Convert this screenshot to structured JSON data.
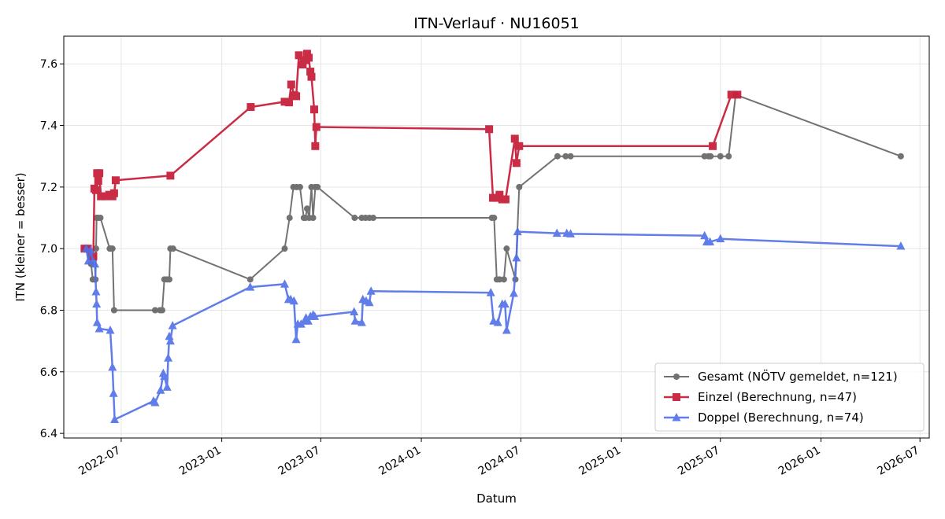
{
  "chart_data": {
    "type": "line",
    "title": "ITN-Verlauf · NU16051",
    "xlabel": "Datum",
    "ylabel": "ITN  (kleiner = besser)",
    "x_type": "date",
    "xlim": [
      "2022-03-18",
      "2026-07-18"
    ],
    "ylim": [
      6.385,
      7.69
    ],
    "grid": true,
    "legend_position": "lower right",
    "x_ticks": [
      "2022-07",
      "2023-01",
      "2023-07",
      "2024-01",
      "2024-07",
      "2025-01",
      "2025-07",
      "2026-01",
      "2026-07"
    ],
    "y_ticks": [
      6.4,
      6.6,
      6.8,
      7.0,
      7.2,
      7.4,
      7.6
    ],
    "y_tick_labels": [
      "6.4",
      "6.6",
      "6.8",
      "7.0",
      "7.2",
      "7.4",
      "7.6"
    ],
    "series": [
      {
        "name": "Gesamt (NÖTV gemeldet, n=121)",
        "color": "#444444",
        "marker": "circle",
        "points": [
          [
            "2022-04-25",
            7.0
          ],
          [
            "2022-04-28",
            7.0
          ],
          [
            "2022-05-02",
            7.0
          ],
          [
            "2022-05-07",
            6.95
          ],
          [
            "2022-05-10",
            6.9
          ],
          [
            "2022-05-13",
            6.9
          ],
          [
            "2022-05-15",
            6.9
          ],
          [
            "2022-05-16",
            7.0
          ],
          [
            "2022-05-17",
            7.1
          ],
          [
            "2022-05-20",
            7.1
          ],
          [
            "2022-05-24",
            7.1
          ],
          [
            "2022-06-10",
            7.0
          ],
          [
            "2022-06-12",
            7.0
          ],
          [
            "2022-06-15",
            7.0
          ],
          [
            "2022-06-18",
            6.8
          ],
          [
            "2022-09-01",
            6.8
          ],
          [
            "2022-09-10",
            6.8
          ],
          [
            "2022-09-14",
            6.8
          ],
          [
            "2022-09-18",
            6.9
          ],
          [
            "2022-09-23",
            6.9
          ],
          [
            "2022-09-27",
            6.9
          ],
          [
            "2022-09-29",
            7.0
          ],
          [
            "2022-10-04",
            7.0
          ],
          [
            "2023-02-22",
            6.9
          ],
          [
            "2023-04-26",
            7.0
          ],
          [
            "2023-05-05",
            7.1
          ],
          [
            "2023-05-12",
            7.2
          ],
          [
            "2023-05-18",
            7.2
          ],
          [
            "2023-05-24",
            7.2
          ],
          [
            "2023-05-31",
            7.1
          ],
          [
            "2023-06-03",
            7.1
          ],
          [
            "2023-06-06",
            7.13
          ],
          [
            "2023-06-10",
            7.1
          ],
          [
            "2023-06-14",
            7.2
          ],
          [
            "2023-06-17",
            7.1
          ],
          [
            "2023-06-21",
            7.2
          ],
          [
            "2023-06-25",
            7.2
          ],
          [
            "2023-09-01",
            7.1
          ],
          [
            "2023-09-14",
            7.1
          ],
          [
            "2023-09-21",
            7.1
          ],
          [
            "2023-09-28",
            7.1
          ],
          [
            "2023-10-05",
            7.1
          ],
          [
            "2024-05-09",
            7.1
          ],
          [
            "2024-05-13",
            7.1
          ],
          [
            "2024-05-18",
            6.9
          ],
          [
            "2024-05-23",
            6.9
          ],
          [
            "2024-05-31",
            6.9
          ],
          [
            "2024-06-05",
            7.0
          ],
          [
            "2024-06-21",
            6.9
          ],
          [
            "2024-06-28",
            7.2
          ],
          [
            "2024-09-06",
            7.3
          ],
          [
            "2024-09-21",
            7.3
          ],
          [
            "2024-09-30",
            7.3
          ],
          [
            "2025-06-02",
            7.3
          ],
          [
            "2025-06-09",
            7.3
          ],
          [
            "2025-06-13",
            7.3
          ],
          [
            "2025-07-01",
            7.3
          ],
          [
            "2025-07-16",
            7.3
          ],
          [
            "2025-07-29",
            7.5
          ],
          [
            "2026-05-27",
            7.3
          ]
        ]
      },
      {
        "name": "Einzel (Berechnung, n=47)",
        "color": "#c8213d",
        "marker": "square",
        "points": [
          [
            "2022-04-25",
            7.0
          ],
          [
            "2022-05-01",
            7.0
          ],
          [
            "2022-05-07",
            6.975
          ],
          [
            "2022-05-11",
            6.975
          ],
          [
            "2022-05-13",
            7.195
          ],
          [
            "2022-05-16",
            7.19
          ],
          [
            "2022-05-18",
            7.245
          ],
          [
            "2022-05-20",
            7.22
          ],
          [
            "2022-05-22",
            7.245
          ],
          [
            "2022-05-25",
            7.17
          ],
          [
            "2022-06-02",
            7.17
          ],
          [
            "2022-06-09",
            7.175
          ],
          [
            "2022-06-15",
            7.17
          ],
          [
            "2022-06-18",
            7.18
          ],
          [
            "2022-06-21",
            7.222
          ],
          [
            "2022-09-29",
            7.237
          ],
          [
            "2023-02-23",
            7.46
          ],
          [
            "2023-04-26",
            7.477
          ],
          [
            "2023-05-04",
            7.475
          ],
          [
            "2023-05-08",
            7.533
          ],
          [
            "2023-05-14",
            7.498
          ],
          [
            "2023-05-17",
            7.495
          ],
          [
            "2023-05-22",
            7.628
          ],
          [
            "2023-05-29",
            7.598
          ],
          [
            "2023-06-03",
            7.612
          ],
          [
            "2023-06-06",
            7.633
          ],
          [
            "2023-06-09",
            7.62
          ],
          [
            "2023-06-12",
            7.575
          ],
          [
            "2023-06-14",
            7.558
          ],
          [
            "2023-06-19",
            7.452
          ],
          [
            "2023-06-21",
            7.333
          ],
          [
            "2023-06-23",
            7.395
          ],
          [
            "2024-05-04",
            7.388
          ],
          [
            "2024-05-11",
            7.165
          ],
          [
            "2024-05-18",
            7.165
          ],
          [
            "2024-05-23",
            7.175
          ],
          [
            "2024-05-28",
            7.16
          ],
          [
            "2024-06-03",
            7.16
          ],
          [
            "2024-06-20",
            7.357
          ],
          [
            "2024-06-23",
            7.278
          ],
          [
            "2024-06-28",
            7.333
          ],
          [
            "2025-06-17",
            7.333
          ],
          [
            "2025-07-21",
            7.5
          ],
          [
            "2025-08-01",
            7.5
          ]
        ]
      },
      {
        "name": "Doppel (Berechnung, n=74)",
        "color": "#4f6fe8",
        "marker": "triangle",
        "points": [
          [
            "2022-04-28",
            7.0
          ],
          [
            "2022-05-02",
            6.96
          ],
          [
            "2022-05-06",
            6.995
          ],
          [
            "2022-05-10",
            6.96
          ],
          [
            "2022-05-14",
            6.95
          ],
          [
            "2022-05-16",
            6.86
          ],
          [
            "2022-05-17",
            6.82
          ],
          [
            "2022-05-18",
            6.76
          ],
          [
            "2022-05-22",
            6.74
          ],
          [
            "2022-06-11",
            6.735
          ],
          [
            "2022-06-15",
            6.615
          ],
          [
            "2022-06-17",
            6.53
          ],
          [
            "2022-06-19",
            6.445
          ],
          [
            "2022-08-29",
            6.505
          ],
          [
            "2022-09-01",
            6.5
          ],
          [
            "2022-09-11",
            6.54
          ],
          [
            "2022-09-16",
            6.595
          ],
          [
            "2022-09-18",
            6.585
          ],
          [
            "2022-09-23",
            6.55
          ],
          [
            "2022-09-25",
            6.645
          ],
          [
            "2022-09-27",
            6.715
          ],
          [
            "2022-09-29",
            6.7
          ],
          [
            "2022-10-03",
            6.75
          ],
          [
            "2023-02-22",
            6.875
          ],
          [
            "2023-04-26",
            6.885
          ],
          [
            "2023-05-03",
            6.835
          ],
          [
            "2023-05-07",
            6.835
          ],
          [
            "2023-05-13",
            6.83
          ],
          [
            "2023-05-17",
            6.705
          ],
          [
            "2023-05-20",
            6.755
          ],
          [
            "2023-05-26",
            6.755
          ],
          [
            "2023-06-02",
            6.765
          ],
          [
            "2023-06-04",
            6.775
          ],
          [
            "2023-06-08",
            6.765
          ],
          [
            "2023-06-12",
            6.78
          ],
          [
            "2023-06-17",
            6.785
          ],
          [
            "2023-06-20",
            6.78
          ],
          [
            "2023-08-31",
            6.795
          ],
          [
            "2023-09-02",
            6.765
          ],
          [
            "2023-09-14",
            6.76
          ],
          [
            "2023-09-16",
            6.835
          ],
          [
            "2023-09-22",
            6.83
          ],
          [
            "2023-09-28",
            6.825
          ],
          [
            "2023-10-01",
            6.862
          ],
          [
            "2024-05-07",
            6.857
          ],
          [
            "2024-05-12",
            6.765
          ],
          [
            "2024-05-20",
            6.76
          ],
          [
            "2024-05-28",
            6.82
          ],
          [
            "2024-06-02",
            6.82
          ],
          [
            "2024-06-05",
            6.735
          ],
          [
            "2024-06-18",
            6.855
          ],
          [
            "2024-06-23",
            6.97
          ],
          [
            "2024-06-25",
            7.055
          ],
          [
            "2024-09-05",
            7.05
          ],
          [
            "2024-09-23",
            7.05
          ],
          [
            "2024-09-30",
            7.048
          ],
          [
            "2025-06-02",
            7.042
          ],
          [
            "2025-06-06",
            7.022
          ],
          [
            "2025-06-12",
            7.022
          ],
          [
            "2025-07-01",
            7.032
          ],
          [
            "2026-05-27",
            7.008
          ]
        ]
      }
    ]
  }
}
